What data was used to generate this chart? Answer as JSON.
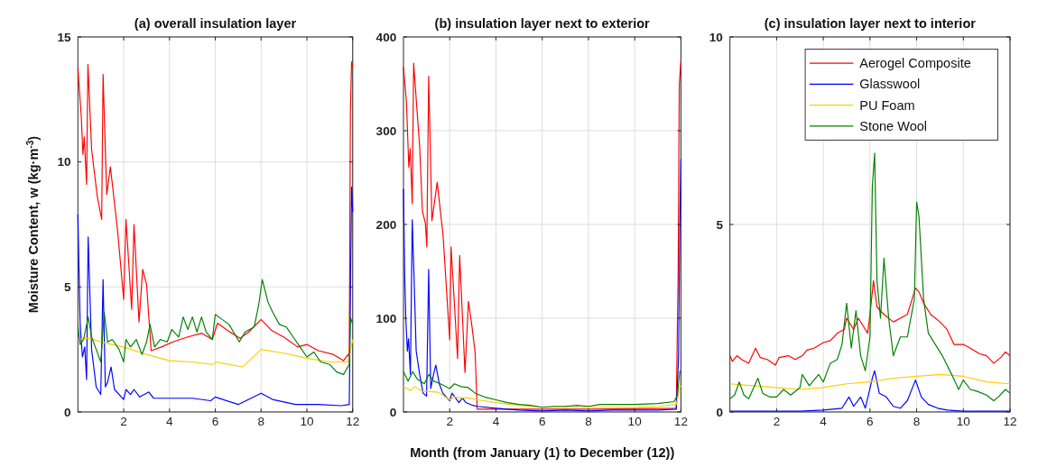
{
  "chart_data": [
    {
      "type": "line",
      "title": "(a) overall insulation layer",
      "ylabel": "Moisture Content, w (kg·m$^{-3}$)",
      "xlim": [
        0,
        12
      ],
      "xticks": [
        2,
        4,
        6,
        8,
        10,
        12
      ],
      "ylim": [
        0,
        15
      ],
      "yticks": [
        0,
        5,
        10,
        15
      ],
      "grid": true,
      "legend": false,
      "series": [
        {
          "color": "#ff0000",
          "x": [
            0,
            0.15,
            0.22,
            0.28,
            0.38,
            0.44,
            0.6,
            0.85,
            1.04,
            1.1,
            1.26,
            1.42,
            1.74,
            2.0,
            2.1,
            2.35,
            2.45,
            2.67,
            2.83,
            3.0,
            3.2,
            3.65,
            4.15,
            4.8,
            5.4,
            5.87,
            6.1,
            6.55,
            7.08,
            7.46,
            8.0,
            8.47,
            8.98,
            9.6,
            10.0,
            10.5,
            11.15,
            11.6,
            11.8,
            11.85,
            11.9,
            11.95,
            12
          ],
          "values": [
            13.75,
            11.8,
            10.3,
            11.0,
            9.1,
            13.9,
            10.5,
            8.6,
            7.7,
            13.5,
            8.7,
            9.8,
            7.2,
            4.5,
            7.7,
            4.1,
            7.5,
            3.6,
            5.7,
            5.1,
            2.45,
            2.6,
            2.8,
            3.0,
            3.15,
            2.9,
            3.55,
            3.25,
            2.95,
            3.2,
            3.7,
            3.25,
            3.0,
            2.6,
            2.7,
            2.45,
            2.3,
            2.05,
            2.3,
            2.2,
            12,
            14,
            13.8
          ]
        },
        {
          "color": "#0000ff",
          "x": [
            0,
            0.1,
            0.2,
            0.3,
            0.38,
            0.45,
            0.6,
            0.8,
            1.0,
            1.1,
            1.2,
            1.3,
            1.45,
            1.6,
            2.0,
            2.1,
            2.3,
            2.45,
            2.7,
            3.1,
            3.3,
            4.0,
            5.0,
            5.8,
            6.0,
            7.0,
            8.0,
            8.5,
            9.5,
            10.5,
            11.5,
            11.85,
            11.95,
            12
          ],
          "values": [
            7.9,
            3.5,
            2.2,
            2.6,
            1.3,
            7.0,
            2.5,
            1.0,
            0.7,
            5.3,
            1.0,
            1.2,
            1.8,
            0.9,
            0.5,
            0.9,
            0.7,
            0.9,
            0.6,
            0.8,
            0.55,
            0.55,
            0.55,
            0.45,
            0.6,
            0.3,
            0.75,
            0.5,
            0.3,
            0.3,
            0.25,
            0.3,
            9.0,
            8.0
          ]
        },
        {
          "color": "#ffcc00",
          "x": [
            0,
            0.5,
            1,
            1.5,
            2,
            3,
            4,
            5,
            5.85,
            6.1,
            6.3,
            7.2,
            8.0,
            9.0,
            10.0,
            11.0,
            11.8,
            12
          ],
          "values": [
            2.9,
            2.95,
            2.8,
            2.7,
            2.6,
            2.3,
            2.05,
            2.0,
            1.9,
            2.0,
            1.95,
            1.8,
            2.5,
            2.35,
            2.15,
            2.0,
            2.0,
            2.9
          ]
        },
        {
          "color": "#008000",
          "x": [
            0,
            0.1,
            0.25,
            0.45,
            0.6,
            0.8,
            1.0,
            1.15,
            1.3,
            1.5,
            1.8,
            2.0,
            2.1,
            2.3,
            2.55,
            2.8,
            3.0,
            3.15,
            3.35,
            3.6,
            3.9,
            4.1,
            4.4,
            4.6,
            4.8,
            5.0,
            5.2,
            5.4,
            5.6,
            5.87,
            6.0,
            6.3,
            6.6,
            7.05,
            7.3,
            7.7,
            7.9,
            8.05,
            8.3,
            8.5,
            8.8,
            9.1,
            9.4,
            9.7,
            10.0,
            10.3,
            10.6,
            11.0,
            11.3,
            11.6,
            11.85,
            11.9,
            12
          ],
          "values": [
            3.5,
            2.7,
            2.9,
            3.8,
            3.0,
            2.5,
            2.0,
            4.0,
            2.8,
            2.9,
            2.5,
            2.0,
            2.9,
            2.6,
            2.9,
            2.3,
            2.8,
            3.5,
            2.6,
            2.9,
            2.8,
            3.3,
            3.0,
            3.8,
            3.3,
            3.8,
            3.2,
            3.8,
            3.2,
            2.9,
            3.9,
            3.7,
            3.5,
            2.8,
            3.2,
            3.4,
            4.3,
            5.3,
            4.4,
            4.0,
            3.5,
            3.4,
            3.0,
            2.6,
            2.2,
            2.4,
            2.0,
            1.9,
            1.6,
            1.5,
            1.9,
            3.8,
            3.5
          ]
        }
      ]
    },
    {
      "type": "line",
      "title": "(b) insulation layer next to exterior",
      "xlabel": "Month (from January (1) to December (12))",
      "xlim": [
        0,
        12
      ],
      "xticks": [
        2,
        4,
        6,
        8,
        10,
        12
      ],
      "ylim": [
        0,
        400
      ],
      "yticks": [
        0,
        100,
        200,
        300,
        400
      ],
      "grid": true,
      "legend": false,
      "series": [
        {
          "color": "#ff0000",
          "x": [
            0,
            0.13,
            0.23,
            0.29,
            0.38,
            0.44,
            0.57,
            0.7,
            0.82,
            0.95,
            1.01,
            1.09,
            1.23,
            1.46,
            1.71,
            2.0,
            2.06,
            2.34,
            2.43,
            2.66,
            2.81,
            2.97,
            3.1,
            3.19,
            3.5,
            6,
            8,
            11.8,
            11.88,
            11.93,
            12
          ],
          "values": [
            368,
            330,
            261,
            281,
            222,
            372,
            327,
            283,
            214,
            201,
            176,
            358,
            204,
            245,
            189,
            77,
            176,
            57,
            167,
            42,
            118,
            90,
            63,
            3,
            3,
            3,
            3,
            4,
            150,
            350,
            375
          ]
        },
        {
          "color": "#0000ff",
          "x": [
            0,
            0.05,
            0.1,
            0.17,
            0.22,
            0.3,
            0.38,
            0.45,
            0.55,
            0.7,
            0.85,
            1.0,
            1.09,
            1.18,
            1.3,
            1.4,
            1.55,
            1.7,
            2.0,
            2.1,
            2.4,
            2.55,
            2.7,
            3.0,
            3.2,
            4,
            5,
            6,
            7,
            8,
            9,
            10,
            11,
            11.8,
            11.9,
            11.95,
            12
          ],
          "values": [
            238,
            150,
            100,
            65,
            78,
            40,
            205,
            150,
            65,
            40,
            20,
            17,
            152,
            25,
            40,
            50,
            30,
            20,
            12,
            20,
            10,
            15,
            10,
            7,
            6,
            4,
            2,
            1,
            2,
            1,
            2,
            2,
            2,
            3,
            60,
            200,
            270
          ]
        },
        {
          "color": "#ffcc00",
          "x": [
            0,
            0.3,
            0.5,
            0.8,
            1.1,
            1.5,
            2,
            2.2,
            2.5,
            2.8,
            3.2,
            4,
            5,
            6,
            7,
            8,
            9,
            10,
            11,
            11.8,
            11.95,
            12
          ],
          "values": [
            27,
            23,
            27,
            22,
            22,
            21,
            13,
            16,
            15,
            15,
            13,
            10,
            7,
            5,
            5,
            5,
            5,
            5,
            6,
            8,
            25,
            28
          ]
        },
        {
          "color": "#008000",
          "x": [
            0,
            0.2,
            0.4,
            0.6,
            0.9,
            1.1,
            1.3,
            1.6,
            2.0,
            2.2,
            2.5,
            2.8,
            3.1,
            3.5,
            4,
            4.5,
            5,
            5.5,
            6,
            6.5,
            7,
            7.5,
            8,
            8.5,
            9,
            10,
            11,
            11.7,
            11.85,
            11.95,
            12
          ],
          "values": [
            43,
            33,
            43,
            35,
            30,
            40,
            33,
            30,
            25,
            30,
            27,
            26,
            20,
            16,
            13,
            10,
            8,
            7,
            5,
            6,
            6,
            7,
            6,
            8,
            8,
            8,
            9,
            11,
            18,
            43,
            44
          ]
        }
      ]
    },
    {
      "type": "line",
      "title": "(c) insulation layer next to interior",
      "xlim": [
        0,
        12
      ],
      "xticks": [
        2,
        4,
        6,
        8,
        10,
        12
      ],
      "ylim": [
        0,
        10
      ],
      "yticks": [
        0,
        5,
        10
      ],
      "grid": true,
      "legend": "top right",
      "series": [
        {
          "name": "Aerogel Composite",
          "color": "#ff0000",
          "x": [
            0,
            0.1,
            0.3,
            0.5,
            0.8,
            1.1,
            1.3,
            1.6,
            1.95,
            2.1,
            2.5,
            2.8,
            3.1,
            3.3,
            3.6,
            4.0,
            4.3,
            4.6,
            4.9,
            5.0,
            5.3,
            5.5,
            5.7,
            5.9,
            6.0,
            6.15,
            6.3,
            6.6,
            7.0,
            7.3,
            7.6,
            7.95,
            8.1,
            8.3,
            8.6,
            9.0,
            9.3,
            9.6,
            10.0,
            10.3,
            10.7,
            11.0,
            11.3,
            11.6,
            11.8,
            12
          ],
          "values": [
            1.5,
            1.35,
            1.5,
            1.4,
            1.3,
            1.7,
            1.45,
            1.4,
            1.25,
            1.45,
            1.5,
            1.4,
            1.5,
            1.65,
            1.7,
            1.85,
            1.9,
            2.1,
            2.2,
            2.5,
            2.2,
            2.5,
            2.3,
            2.1,
            2.6,
            3.5,
            2.8,
            2.6,
            2.4,
            2.5,
            2.6,
            3.3,
            3.2,
            2.9,
            2.6,
            2.4,
            2.2,
            1.8,
            1.8,
            1.7,
            1.55,
            1.5,
            1.3,
            1.45,
            1.6,
            1.5
          ]
        },
        {
          "name": "Glasswool",
          "color": "#0000ff",
          "x": [
            0,
            2,
            3,
            4,
            4.8,
            5.1,
            5.3,
            5.6,
            5.8,
            6.1,
            6.2,
            6.4,
            6.7,
            7.0,
            7.3,
            7.6,
            7.95,
            8.2,
            8.5,
            8.9,
            9.3,
            10,
            12
          ],
          "values": [
            0.02,
            0.02,
            0.02,
            0.05,
            0.1,
            0.4,
            0.15,
            0.4,
            0.1,
            0.9,
            1.1,
            0.5,
            0.4,
            0.15,
            0.1,
            0.3,
            0.85,
            0.4,
            0.2,
            0.1,
            0.05,
            0.02,
            0.02
          ]
        },
        {
          "name": "PU Foam",
          "color": "#ffcc00",
          "x": [
            0,
            1,
            2,
            3,
            4,
            5,
            6,
            7,
            8,
            9,
            10,
            11,
            12
          ],
          "values": [
            0.75,
            0.7,
            0.65,
            0.6,
            0.65,
            0.75,
            0.8,
            0.9,
            0.95,
            1.0,
            0.95,
            0.8,
            0.75
          ]
        },
        {
          "name": "Stone Wool",
          "color": "#008000",
          "x": [
            0,
            0.2,
            0.4,
            0.6,
            0.8,
            1.2,
            1.4,
            1.7,
            2.0,
            2.3,
            2.6,
            3.0,
            3.1,
            3.4,
            3.8,
            4.0,
            4.3,
            4.6,
            4.8,
            5.0,
            5.2,
            5.4,
            5.6,
            5.8,
            6.0,
            6.1,
            6.2,
            6.3,
            6.45,
            6.6,
            6.8,
            7.0,
            7.3,
            7.6,
            7.9,
            8.0,
            8.1,
            8.3,
            8.5,
            8.8,
            9.1,
            9.5,
            9.8,
            10.0,
            10.3,
            10.6,
            11.0,
            11.3,
            11.5,
            11.8,
            12
          ],
          "values": [
            0.35,
            0.45,
            0.8,
            0.45,
            0.35,
            0.9,
            0.5,
            0.4,
            0.4,
            0.6,
            0.45,
            0.65,
            1.0,
            0.7,
            1.0,
            0.8,
            1.3,
            1.4,
            1.8,
            2.9,
            1.7,
            2.7,
            1.5,
            1.1,
            2.0,
            6.0,
            6.9,
            3.5,
            2.5,
            4.1,
            2.5,
            1.5,
            2.0,
            2.0,
            3.0,
            5.6,
            5.2,
            3.0,
            2.1,
            1.8,
            1.5,
            1.0,
            0.6,
            0.85,
            0.6,
            0.55,
            0.45,
            0.3,
            0.4,
            0.6,
            0.5
          ]
        }
      ]
    }
  ]
}
